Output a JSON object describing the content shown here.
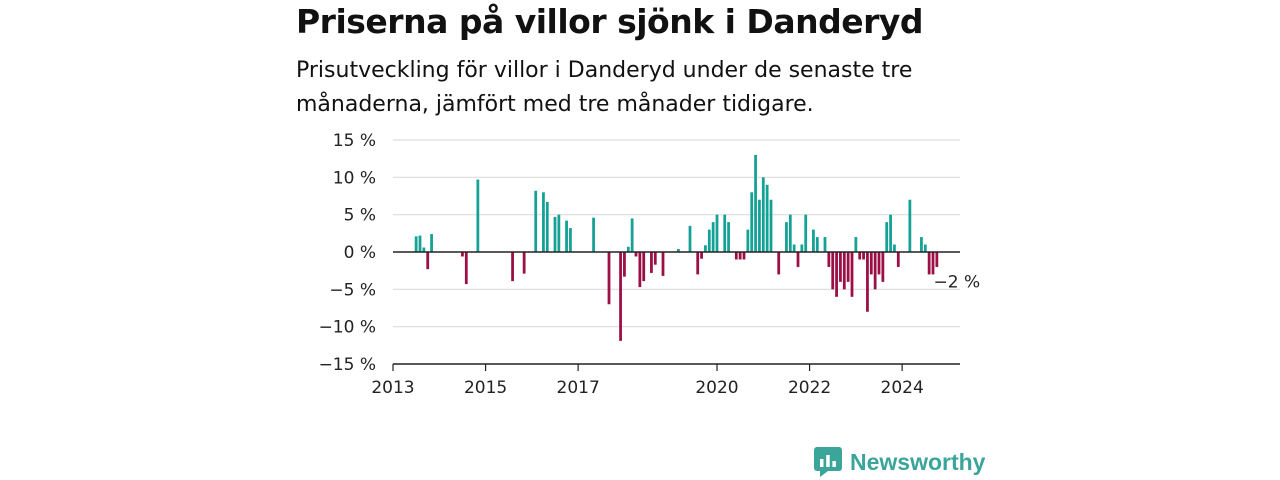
{
  "title": "Priserna på villor sjönk i Danderyd",
  "subtitle": "Prisutveckling för villor i Danderyd under de senaste tre månaderna, jämfört med tre månader tidigare.",
  "brand": {
    "name": "Newsworthy",
    "icon": "newsworthy-logo-icon",
    "color": "#3aa598"
  },
  "colors": {
    "positive": "#16a196",
    "negative": "#9b0f45",
    "grid": "#dddddd",
    "axis": "#222222"
  },
  "chart_data": {
    "type": "bar",
    "ylim": [
      -15,
      15
    ],
    "y_ticks": [
      15,
      10,
      5,
      0,
      -5,
      -10,
      -15
    ],
    "y_tick_labels": [
      "15 %",
      "10 %",
      "5 %",
      "0 %",
      "−5 %",
      "−10 %",
      "−15 %"
    ],
    "xlim": [
      "2013-01",
      "2025-04"
    ],
    "x_ticks": [
      "2013-01",
      "2015-01",
      "2017-01",
      "2020-01",
      "2022-01",
      "2024-01"
    ],
    "x_tick_labels": [
      "2013",
      "2015",
      "2017",
      "2020",
      "2022",
      "2024"
    ],
    "grid": true,
    "annotation": {
      "x": "2024-10",
      "y": -2,
      "text": "−2 %"
    },
    "series": [
      {
        "points": [
          {
            "x": "2013-07",
            "y": 2.1
          },
          {
            "x": "2013-08",
            "y": 2.2
          },
          {
            "x": "2013-09",
            "y": 0.6
          },
          {
            "x": "2013-10",
            "y": -2.3
          },
          {
            "x": "2013-11",
            "y": 2.4
          },
          {
            "x": "2014-07",
            "y": -0.6
          },
          {
            "x": "2014-08",
            "y": -4.3
          },
          {
            "x": "2014-11",
            "y": 9.7
          },
          {
            "x": "2015-08",
            "y": -3.9
          },
          {
            "x": "2015-11",
            "y": -2.9
          },
          {
            "x": "2016-02",
            "y": 8.2
          },
          {
            "x": "2016-04",
            "y": 8.0
          },
          {
            "x": "2016-05",
            "y": 6.7
          },
          {
            "x": "2016-07",
            "y": 4.7
          },
          {
            "x": "2016-08",
            "y": 5.0
          },
          {
            "x": "2016-10",
            "y": 4.2
          },
          {
            "x": "2016-11",
            "y": 3.2
          },
          {
            "x": "2017-05",
            "y": 4.6
          },
          {
            "x": "2017-09",
            "y": -7.0
          },
          {
            "x": "2017-12",
            "y": -11.9
          },
          {
            "x": "2018-01",
            "y": -3.3
          },
          {
            "x": "2018-02",
            "y": 0.7
          },
          {
            "x": "2018-03",
            "y": 4.5
          },
          {
            "x": "2018-04",
            "y": -0.6
          },
          {
            "x": "2018-05",
            "y": -4.7
          },
          {
            "x": "2018-06",
            "y": -3.9
          },
          {
            "x": "2018-08",
            "y": -2.8
          },
          {
            "x": "2018-09",
            "y": -1.7
          },
          {
            "x": "2018-11",
            "y": -3.2
          },
          {
            "x": "2019-03",
            "y": 0.4
          },
          {
            "x": "2019-06",
            "y": 3.5
          },
          {
            "x": "2019-08",
            "y": -3.0
          },
          {
            "x": "2019-09",
            "y": -0.9
          },
          {
            "x": "2019-10",
            "y": 0.9
          },
          {
            "x": "2019-11",
            "y": 3.0
          },
          {
            "x": "2019-12",
            "y": 4.0
          },
          {
            "x": "2020-01",
            "y": 5.0
          },
          {
            "x": "2020-03",
            "y": 5.0
          },
          {
            "x": "2020-04",
            "y": 4.0
          },
          {
            "x": "2020-06",
            "y": -1.0
          },
          {
            "x": "2020-07",
            "y": -1.0
          },
          {
            "x": "2020-08",
            "y": -1.0
          },
          {
            "x": "2020-09",
            "y": 3.0
          },
          {
            "x": "2020-10",
            "y": 8.0
          },
          {
            "x": "2020-11",
            "y": 13.0
          },
          {
            "x": "2020-12",
            "y": 7.0
          },
          {
            "x": "2021-01",
            "y": 10.0
          },
          {
            "x": "2021-02",
            "y": 9.0
          },
          {
            "x": "2021-03",
            "y": 7.0
          },
          {
            "x": "2021-05",
            "y": -3.0
          },
          {
            "x": "2021-07",
            "y": 4.0
          },
          {
            "x": "2021-08",
            "y": 5.0
          },
          {
            "x": "2021-09",
            "y": 1.0
          },
          {
            "x": "2021-10",
            "y": -2.0
          },
          {
            "x": "2021-11",
            "y": 1.0
          },
          {
            "x": "2021-12",
            "y": 5.0
          },
          {
            "x": "2022-02",
            "y": 3.0
          },
          {
            "x": "2022-03",
            "y": 2.0
          },
          {
            "x": "2022-05",
            "y": 2.0
          },
          {
            "x": "2022-06",
            "y": -2.0
          },
          {
            "x": "2022-07",
            "y": -5.0
          },
          {
            "x": "2022-08",
            "y": -6.0
          },
          {
            "x": "2022-09",
            "y": -4.0
          },
          {
            "x": "2022-10",
            "y": -5.0
          },
          {
            "x": "2022-11",
            "y": -4.0
          },
          {
            "x": "2022-12",
            "y": -6.0
          },
          {
            "x": "2023-01",
            "y": 2.0
          },
          {
            "x": "2023-02",
            "y": -1.0
          },
          {
            "x": "2023-03",
            "y": -1.0
          },
          {
            "x": "2023-04",
            "y": -8.0
          },
          {
            "x": "2023-05",
            "y": -3.0
          },
          {
            "x": "2023-06",
            "y": -5.0
          },
          {
            "x": "2023-07",
            "y": -3.0
          },
          {
            "x": "2023-08",
            "y": -4.0
          },
          {
            "x": "2023-09",
            "y": 4.0
          },
          {
            "x": "2023-10",
            "y": 5.0
          },
          {
            "x": "2023-11",
            "y": 1.0
          },
          {
            "x": "2023-12",
            "y": -2.0
          },
          {
            "x": "2024-03",
            "y": 7.0
          },
          {
            "x": "2024-06",
            "y": 2.0
          },
          {
            "x": "2024-07",
            "y": 1.0
          },
          {
            "x": "2024-08",
            "y": -3.0
          },
          {
            "x": "2024-09",
            "y": -3.0
          },
          {
            "x": "2024-10",
            "y": -2.0
          }
        ]
      }
    ]
  }
}
